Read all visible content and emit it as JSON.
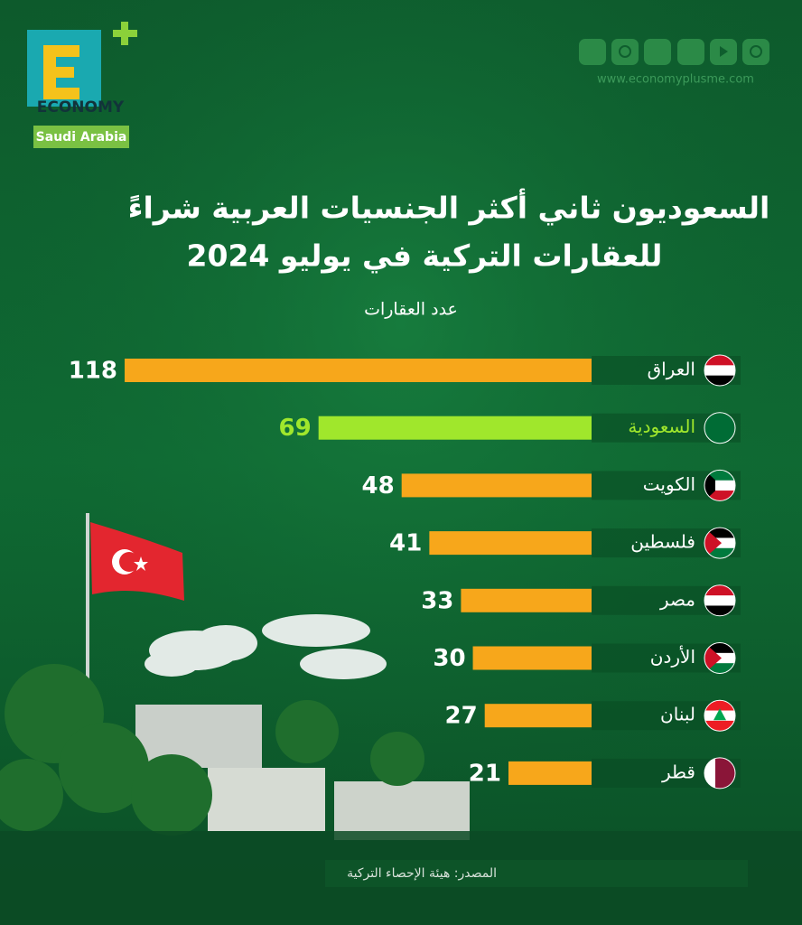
{
  "brand": {
    "logo": "ECONOMY",
    "region": "Saudi Arabia",
    "website": "www.economyplusme.com"
  },
  "chart_data": {
    "type": "bar",
    "orientation": "horizontal",
    "title": [
      "السعوديون ثاني أكثر الجنسيات العربية شراءً",
      "للعقارات التركية في يوليو 2024"
    ],
    "subtitle": "عدد العقارات",
    "categories": [
      "العراق",
      "السعودية",
      "الكويت",
      "فلسطين",
      "مصر",
      "الأردن",
      "لبنان",
      "قطر"
    ],
    "values": [
      118,
      69,
      48,
      41,
      33,
      30,
      27,
      21
    ],
    "color": "#f7a71b",
    "highlight": {
      "index": 1,
      "color": "#a0e72c"
    },
    "source": "المصدر: هيئة الإحصاء التركية"
  }
}
